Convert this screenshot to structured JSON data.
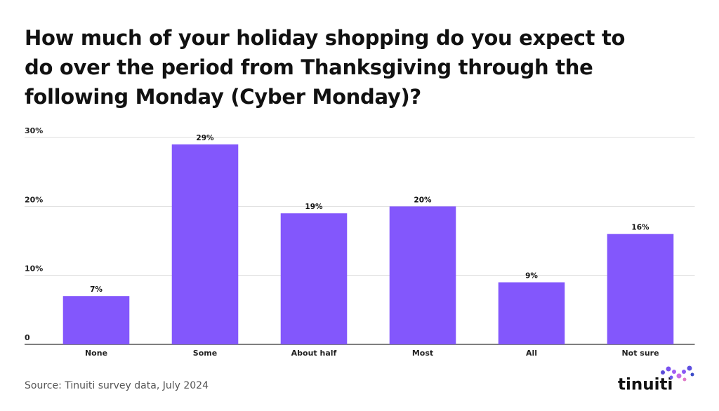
{
  "chart_data": {
    "type": "bar",
    "title": [
      "How much of your holiday shopping do you expect to",
      "do over the period from Thanksgiving through the",
      "following Monday (Cyber Monday)?"
    ],
    "categories": [
      "None",
      "Some",
      "About half",
      "Most",
      "All",
      "Not sure"
    ],
    "values": [
      7,
      29,
      19,
      20,
      9,
      16
    ],
    "value_labels": [
      "7%",
      "29%",
      "19%",
      "20%",
      "9%",
      "16%"
    ],
    "color": "#8357fc",
    "ylim": [
      0,
      30
    ],
    "yticks": [
      0,
      {
        "value": 10,
        "label": "10%"
      },
      {
        "value": 20,
        "label": "20%"
      },
      {
        "value": 30,
        "label": "30%"
      }
    ],
    "grid": true,
    "source": "Source: Tinuiti survey data, July 2024",
    "logo": "tinuiti"
  }
}
